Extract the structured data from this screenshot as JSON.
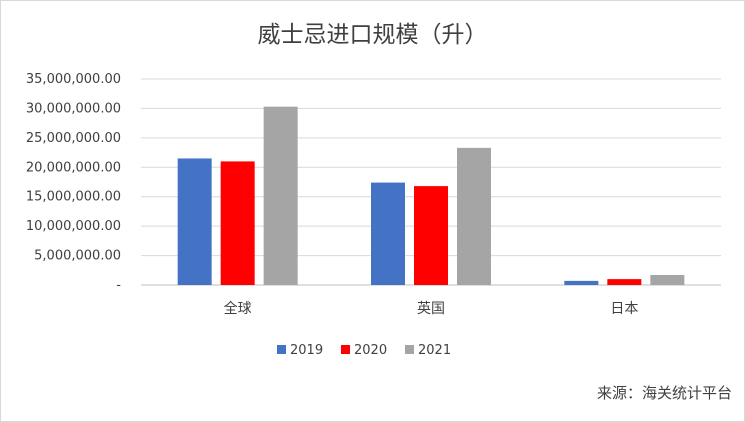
{
  "chart_data": {
    "type": "bar",
    "title": "威士忌进口规模（升）",
    "categories": [
      "全球",
      "英国",
      "日本"
    ],
    "series": [
      {
        "name": "2019",
        "color": "#4472C4",
        "values": [
          21500000,
          17400000,
          700000
        ]
      },
      {
        "name": "2020",
        "color": "#FF0000",
        "values": [
          21000000,
          16800000,
          1000000
        ]
      },
      {
        "name": "2021",
        "color": "#A5A5A5",
        "values": [
          30300000,
          23300000,
          1700000
        ]
      }
    ],
    "ylim": [
      0,
      35000000
    ],
    "yticks": [
      0,
      5000000,
      10000000,
      15000000,
      20000000,
      25000000,
      30000000,
      35000000
    ],
    "ytick_labels": [
      "-",
      "5,000,000.00",
      "10,000,000.00",
      "15,000,000.00",
      "20,000,000.00",
      "25,000,000.00",
      "30,000,000.00",
      "35,000,000.00"
    ],
    "grid": true,
    "legend_position": "bottom"
  },
  "source_text": "来源：海关统计平台"
}
